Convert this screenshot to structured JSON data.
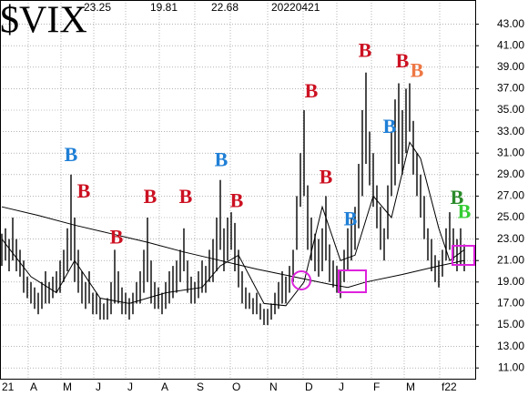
{
  "chart_data": {
    "type": "hilo",
    "title": "$VIX",
    "header_values": [
      "23.25",
      "19.81",
      "22.68",
      "20220421"
    ],
    "color": "#000000",
    "grid": true,
    "xlim": [
      -0.5,
      130
    ],
    "ylim": [
      10,
      45
    ],
    "yticks": [
      {
        "value": 11,
        "label": "11.00"
      },
      {
        "value": 13,
        "label": "13.00"
      },
      {
        "value": 15,
        "label": "15.00"
      },
      {
        "value": 17,
        "label": "17.00"
      },
      {
        "value": 19,
        "label": "19.00"
      },
      {
        "value": 21,
        "label": "21.00"
      },
      {
        "value": 23,
        "label": "23.00"
      },
      {
        "value": 25,
        "label": "25.00"
      },
      {
        "value": 27,
        "label": "27.00"
      },
      {
        "value": 29,
        "label": "29.00"
      },
      {
        "value": 31,
        "label": "31.00"
      },
      {
        "value": 33,
        "label": "33.00"
      },
      {
        "value": 35,
        "label": "35.00"
      },
      {
        "value": 37,
        "label": "37.00"
      },
      {
        "value": 39,
        "label": "39.00"
      },
      {
        "value": 41,
        "label": "41.00"
      },
      {
        "value": 43,
        "label": "43.00"
      }
    ],
    "xticks": [
      {
        "value": -0.5,
        "label": "21"
      },
      {
        "value": 7.25,
        "label": "A"
      },
      {
        "value": 16.25,
        "label": "M"
      },
      {
        "value": 25.25,
        "label": "J"
      },
      {
        "value": 34,
        "label": "J"
      },
      {
        "value": 43.25,
        "label": "A"
      },
      {
        "value": 53,
        "label": "S"
      },
      {
        "value": 62.75,
        "label": "O"
      },
      {
        "value": 73,
        "label": "N"
      },
      {
        "value": 82.75,
        "label": "D"
      },
      {
        "value": 92,
        "label": "J"
      },
      {
        "value": 101.5,
        "label": "F"
      },
      {
        "value": 110.5,
        "label": "M"
      },
      {
        "value": 120.25,
        "label": "f22"
      }
    ],
    "x": [
      0,
      1,
      2,
      3,
      4,
      5,
      6,
      7,
      8,
      9,
      10,
      11,
      12,
      13,
      14,
      15,
      16,
      17,
      18,
      19,
      20,
      21,
      22,
      23,
      24,
      25,
      26,
      27,
      28,
      29,
      30,
      31,
      32,
      33,
      34,
      35,
      36,
      37,
      38,
      39,
      40,
      41,
      42,
      43,
      44,
      45,
      46,
      47,
      48,
      49,
      50,
      51,
      52,
      53,
      54,
      55,
      56,
      57,
      58,
      59,
      60,
      61,
      62,
      63,
      64,
      65,
      66,
      67,
      68,
      69,
      70,
      71,
      72,
      73,
      74,
      75,
      76,
      77,
      78,
      79,
      80,
      81,
      82,
      83,
      84,
      85,
      86,
      87,
      88,
      89,
      90,
      91,
      92,
      93,
      94,
      95,
      96,
      97,
      98,
      99,
      100,
      101,
      102,
      103,
      104,
      105,
      106,
      107,
      108,
      109,
      110,
      111,
      112,
      113,
      114,
      115,
      116,
      117,
      118,
      119,
      120,
      121,
      122,
      123,
      124,
      125,
      126,
      127
    ],
    "high": [
      23.5,
      24,
      23,
      25,
      23,
      22,
      21,
      19.5,
      19,
      18.5,
      18,
      19,
      20,
      19,
      19.5,
      20,
      21,
      22,
      24,
      29,
      25,
      22,
      20,
      19,
      20,
      18,
      18,
      17.5,
      17,
      17.5,
      19,
      22,
      20,
      18.5,
      18,
      17.5,
      18,
      19,
      20,
      22,
      25,
      21,
      19,
      18.5,
      18,
      19,
      20,
      20.5,
      21,
      22,
      24,
      21,
      19.5,
      19,
      20,
      21,
      20.5,
      22,
      23,
      25,
      28.5,
      24,
      25,
      25.5,
      24.5,
      22,
      20,
      18.5,
      18,
      17.5,
      18,
      17,
      16.5,
      16.5,
      17,
      18,
      19,
      20,
      19.5,
      20.5,
      22,
      27,
      31,
      35,
      28,
      25,
      23.5,
      23,
      24,
      27,
      22.5,
      21,
      20.5,
      20,
      22,
      24,
      25,
      26,
      30,
      35,
      38.5,
      33,
      31,
      28,
      26,
      24,
      28,
      33,
      36,
      37.5,
      35,
      37,
      37.5,
      34,
      31,
      29,
      27,
      24,
      23,
      21.5,
      21,
      22,
      24,
      25.5,
      24,
      23,
      24,
      22.5
    ],
    "low": [
      20.5,
      21,
      20,
      21,
      20,
      19.5,
      18,
      17.5,
      17,
      16.5,
      16,
      16.5,
      17,
      17,
      17.5,
      18,
      18,
      19,
      20,
      21,
      19,
      18,
      17,
      16.5,
      17,
      16,
      16,
      15.5,
      15.5,
      15.5,
      16,
      17,
      17,
      16,
      16,
      15.5,
      16,
      17,
      17,
      18,
      19,
      17,
      16.5,
      16.5,
      16,
      16.5,
      17,
      17.5,
      18,
      19,
      20,
      18,
      17,
      17,
      17.5,
      18,
      18,
      19,
      19,
      20,
      22,
      20,
      21,
      22,
      20,
      18.5,
      17,
      16.5,
      16.5,
      16,
      16,
      15.5,
      15,
      15,
      15.5,
      16,
      16.5,
      17,
      17,
      18,
      19,
      22,
      26,
      27,
      22,
      21,
      20,
      19.5,
      20,
      21,
      19,
      18.5,
      18,
      17.5,
      19,
      20,
      21,
      22,
      24,
      27,
      30,
      28,
      26,
      24,
      22,
      21,
      23,
      27,
      28,
      30,
      29,
      31,
      33,
      29,
      27,
      25,
      23,
      21,
      20,
      19,
      18.5,
      19.5,
      21,
      22,
      21,
      20,
      20.5,
      20
    ],
    "moving_averages": [
      {
        "color": "#000000",
        "x": [
          0,
          10,
          20,
          30,
          40,
          50,
          60,
          70,
          80,
          90,
          95,
          100,
          110,
          120,
          127
        ],
        "values": [
          26,
          25.2,
          24.3,
          23.5,
          22.7,
          21.8,
          21,
          20.2,
          19.5,
          18.8,
          18.5,
          19,
          19.7,
          20.5,
          21
        ]
      },
      {
        "color": "#000000",
        "x": [
          0,
          8,
          15,
          20,
          27,
          35,
          45,
          55,
          60,
          65,
          72,
          78,
          83,
          88,
          93,
          97,
          102,
          107,
          112,
          115,
          120,
          123,
          127
        ],
        "values": [
          23,
          19.5,
          18,
          21,
          17.5,
          17,
          18,
          18.5,
          20.5,
          21.5,
          17,
          16.8,
          19,
          26,
          21,
          21.5,
          27,
          25,
          32,
          30.5,
          24,
          21,
          22
        ]
      }
    ],
    "annotations": [
      {
        "x": 19,
        "y": 30.7,
        "label": "B",
        "color": "#1f7fd6"
      },
      {
        "x": 22.5,
        "y": 27.3,
        "label": "B",
        "color": "#cc1122"
      },
      {
        "x": 31.5,
        "y": 23,
        "label": "B",
        "color": "#cc1122"
      },
      {
        "x": 40.75,
        "y": 26.8,
        "label": "B",
        "color": "#cc1122"
      },
      {
        "x": 50.5,
        "y": 26.8,
        "label": "B",
        "color": "#cc1122"
      },
      {
        "x": 60.25,
        "y": 30.2,
        "label": "B",
        "color": "#1f7fd6"
      },
      {
        "x": 64.5,
        "y": 26.4,
        "label": "B",
        "color": "#cc1122"
      },
      {
        "x": 85,
        "y": 36.6,
        "label": "B",
        "color": "#cc1122"
      },
      {
        "x": 89,
        "y": 28.6,
        "label": "B",
        "color": "#cc1122"
      },
      {
        "x": 95.75,
        "y": 24.7,
        "label": "B",
        "color": "#1f7fd6"
      },
      {
        "x": 99.75,
        "y": 40.4,
        "label": "B",
        "color": "#cc1122"
      },
      {
        "x": 106.5,
        "y": 33.3,
        "label": "B",
        "color": "#1f7fd6"
      },
      {
        "x": 110,
        "y": 39.4,
        "label": "B",
        "color": "#cc1122"
      },
      {
        "x": 114,
        "y": 38.5,
        "label": "B",
        "color": "#ee7744"
      },
      {
        "x": 125,
        "y": 26.7,
        "label": "B",
        "color": "#2a8a2a"
      },
      {
        "x": 127,
        "y": 25.4,
        "label": "B",
        "color": "#33cc33"
      }
    ]
  }
}
